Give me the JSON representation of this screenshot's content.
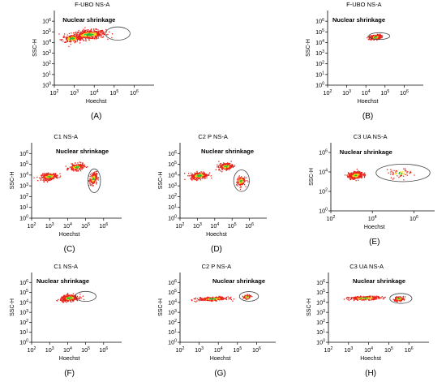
{
  "colors": {
    "density_low": "#e8231c",
    "density_mid": "#f5d21a",
    "density_high": "#1fbf3a",
    "axis": "#000000",
    "gate": "#444444"
  },
  "axis_tick_labels": [
    "10^0",
    "10^1",
    "10^2",
    "10^3",
    "10^4",
    "10^5",
    "10^6"
  ],
  "chart_data": [
    {
      "type": "scatter",
      "panel_label": "(A)",
      "title": "F-UBO NS-A",
      "xlabel": "Hoechst",
      "ylabel": "SSC-H",
      "annotation": "Nuclear shrinkage",
      "x_scale": "log",
      "y_scale": "log",
      "xlim": [
        100,
        10000000
      ],
      "ylim": [
        1,
        10000000
      ],
      "x_ticks": [
        100,
        1000,
        10000,
        100000,
        1000000
      ],
      "y_ticks": [
        1,
        10,
        100,
        1000,
        10000,
        100000,
        1000000
      ],
      "populations": [
        {
          "center": [
            5000,
            60000
          ],
          "spread": [
            0.85,
            0.42
          ],
          "count": 520
        },
        {
          "center": [
            700,
            25000
          ],
          "spread": [
            0.5,
            0.35
          ],
          "count": 160
        }
      ],
      "gate": {
        "center": [
          150000,
          70000
        ],
        "radius": [
          0.62,
          0.62
        ]
      }
    },
    {
      "type": "scatter",
      "panel_label": "(B)",
      "title": "F-UBO NS-A",
      "xlabel": "Hoechst",
      "ylabel": "SSC-H",
      "annotation": "Nuclear shrinkage",
      "x_scale": "log",
      "y_scale": "log",
      "xlim": [
        100,
        10000000
      ],
      "ylim": [
        1,
        10000000
      ],
      "x_ticks": [
        100,
        1000,
        10000,
        100000,
        1000000
      ],
      "y_ticks": [
        1,
        10,
        100,
        1000,
        10000,
        100000,
        1000000
      ],
      "populations": [
        {
          "center": [
            30000,
            35000
          ],
          "spread": [
            0.3,
            0.22
          ],
          "count": 260
        }
      ],
      "gate": {
        "center": [
          50000,
          40000
        ],
        "radius": [
          0.55,
          0.32
        ]
      }
    },
    {
      "type": "scatter",
      "panel_label": "(C)",
      "title": "C1 NS-A",
      "xlabel": "Hoechst",
      "ylabel": "SSC-H",
      "annotation": "Nuclear shrinkage",
      "x_scale": "log",
      "y_scale": "log",
      "xlim": [
        100,
        10000000
      ],
      "ylim": [
        1,
        10000000
      ],
      "x_ticks": [
        100,
        1000,
        10000,
        100000,
        1000000
      ],
      "y_ticks": [
        1,
        10,
        100,
        1000,
        10000,
        100000,
        1000000
      ],
      "populations": [
        {
          "center": [
            900,
            8000
          ],
          "spread": [
            0.45,
            0.3
          ],
          "count": 260
        },
        {
          "center": [
            30000,
            60000
          ],
          "spread": [
            0.4,
            0.3
          ],
          "count": 220
        },
        {
          "center": [
            250000,
            5000
          ],
          "spread": [
            0.2,
            0.55
          ],
          "count": 200
        }
      ],
      "gate": {
        "center": [
          300000,
          3000
        ],
        "radius": [
          0.35,
          1.1
        ]
      }
    },
    {
      "type": "scatter",
      "panel_label": "(D)",
      "title": "C2 P NS-A",
      "xlabel": "Hoechst",
      "ylabel": "SSC-H",
      "annotation": "Nuclear shrinkage",
      "x_scale": "log",
      "y_scale": "log",
      "xlim": [
        100,
        10000000
      ],
      "ylim": [
        1,
        10000000
      ],
      "x_ticks": [
        100,
        1000,
        10000,
        100000,
        1000000
      ],
      "y_ticks": [
        1,
        10,
        100,
        1000,
        10000,
        100000,
        1000000
      ],
      "populations": [
        {
          "center": [
            1200,
            10000
          ],
          "spread": [
            0.5,
            0.32
          ],
          "count": 280
        },
        {
          "center": [
            40000,
            70000
          ],
          "spread": [
            0.4,
            0.3
          ],
          "count": 230
        },
        {
          "center": [
            300000,
            3000
          ],
          "spread": [
            0.25,
            0.5
          ],
          "count": 120
        }
      ],
      "gate": {
        "center": [
          350000,
          3000
        ],
        "radius": [
          0.45,
          1.0
        ]
      }
    },
    {
      "type": "scatter",
      "panel_label": "(E)",
      "title": "C3 UA NS-A",
      "xlabel": "Hoechst",
      "ylabel": "SSC-H",
      "annotation": "Nuclear shrinkage",
      "x_scale": "log",
      "y_scale": "log",
      "xlim": [
        100,
        10000000
      ],
      "ylim": [
        1,
        10000000
      ],
      "x_ticks": [
        100,
        10000,
        1000000
      ],
      "y_ticks": [
        1,
        100,
        10000,
        1000000
      ],
      "populations": [
        {
          "center": [
            1500,
            5000
          ],
          "spread": [
            0.35,
            0.35
          ],
          "count": 420
        },
        {
          "center": [
            200000,
            8000
          ],
          "spread": [
            0.6,
            0.45
          ],
          "count": 60
        }
      ],
      "gate": {
        "center": [
          300000,
          8000
        ],
        "radius": [
          1.3,
          0.9
        ]
      }
    },
    {
      "type": "scatter",
      "panel_label": "(F)",
      "title": "C1 NS-A",
      "xlabel": "Hoechst",
      "ylabel": "SSC-H",
      "annotation": "Nuclear shrinkage",
      "x_scale": "log",
      "y_scale": "log",
      "xlim": [
        100,
        10000000
      ],
      "ylim": [
        1,
        10000000
      ],
      "x_ticks": [
        100,
        1000,
        10000,
        100000,
        1000000
      ],
      "y_ticks": [
        1,
        10,
        100,
        1000,
        10000,
        100000,
        1000000
      ],
      "populations": [
        {
          "center": [
            12000,
            30000
          ],
          "spread": [
            0.5,
            0.3
          ],
          "count": 340
        }
      ],
      "gate": {
        "center": [
          100000,
          40000
        ],
        "radius": [
          0.58,
          0.5
        ]
      }
    },
    {
      "type": "scatter",
      "panel_label": "(G)",
      "title": "C2 P NS-A",
      "xlabel": "Hoechst",
      "ylabel": "SSC-H",
      "annotation": "Nuclear shrinkage",
      "x_scale": "log",
      "y_scale": "log",
      "xlim": [
        100,
        10000000
      ],
      "ylim": [
        1,
        10000000
      ],
      "x_ticks": [
        100,
        1000,
        10000,
        100000,
        1000000
      ],
      "y_ticks": [
        1,
        10,
        100,
        1000,
        10000,
        100000,
        1000000
      ],
      "populations": [
        {
          "center": [
            5000,
            25000
          ],
          "spread": [
            0.8,
            0.18
          ],
          "count": 300
        },
        {
          "center": [
            300000,
            40000
          ],
          "spread": [
            0.2,
            0.18
          ],
          "count": 90
        }
      ],
      "gate": {
        "center": [
          400000,
          40000
        ],
        "radius": [
          0.5,
          0.48
        ]
      }
    },
    {
      "type": "scatter",
      "panel_label": "(H)",
      "title": "C3 UA NS-A",
      "xlabel": "Hoechst",
      "ylabel": "SSC-H",
      "annotation": "Nuclear shrinkage",
      "x_scale": "log",
      "y_scale": "log",
      "xlim": [
        100,
        10000000
      ],
      "ylim": [
        1,
        10000000
      ],
      "x_ticks": [
        100,
        1000,
        10000,
        100000,
        1000000
      ],
      "y_ticks": [
        1,
        10,
        100,
        1000,
        10000,
        100000,
        1000000
      ],
      "populations": [
        {
          "center": [
            6000,
            30000
          ],
          "spread": [
            0.8,
            0.18
          ],
          "count": 280
        },
        {
          "center": [
            300000,
            25000
          ],
          "spread": [
            0.25,
            0.22
          ],
          "count": 110
        }
      ],
      "gate": {
        "center": [
          400000,
          25000
        ],
        "radius": [
          0.55,
          0.5
        ]
      }
    }
  ]
}
